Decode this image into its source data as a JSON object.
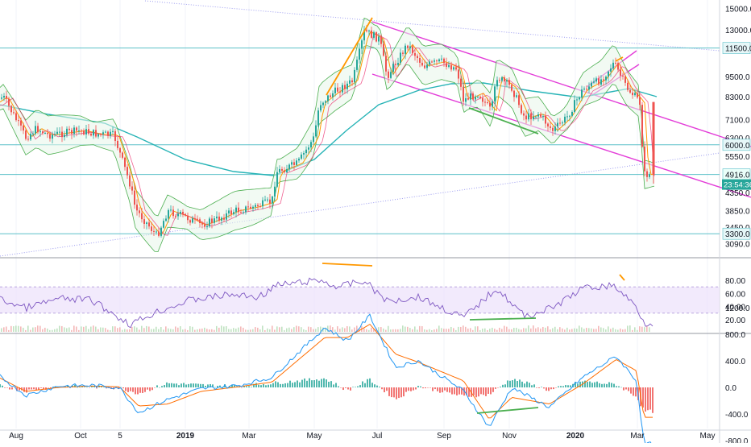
{
  "chart_data": [
    {
      "type": "candlestick",
      "panel": "price",
      "scale": "log",
      "ylim": [
        3000,
        15000
      ],
      "price_ticks": [
        "15000.0",
        "13000.0",
        "9500.0",
        "8300.0",
        "7100.0",
        "6300.0",
        "5550.0",
        "4350.0",
        "3850.0",
        "3450.0",
        "3090.0"
      ],
      "horizontal_levels": [
        {
          "value": 11500,
          "label": "11500.0"
        },
        {
          "value": 6000,
          "label": "6000.0"
        },
        {
          "value": 4916,
          "label": "4916.0"
        },
        {
          "value": 3300,
          "label": "3300.0"
        }
      ],
      "current_price": "4916.0",
      "countdown": "23:54:36",
      "series": [
        {
          "x": "2018-07-15",
          "y": 7900
        },
        {
          "x": "2018-07-25",
          "y": 8300
        },
        {
          "x": "2018-08-05",
          "y": 7200
        },
        {
          "x": "2018-08-15",
          "y": 6300
        },
        {
          "x": "2018-08-25",
          "y": 6700
        },
        {
          "x": "2018-09-05",
          "y": 6400
        },
        {
          "x": "2018-09-20",
          "y": 6500
        },
        {
          "x": "2018-10-05",
          "y": 6600
        },
        {
          "x": "2018-10-20",
          "y": 6450
        },
        {
          "x": "2018-11-05",
          "y": 6400
        },
        {
          "x": "2018-11-20",
          "y": 4600
        },
        {
          "x": "2018-11-25",
          "y": 3900
        },
        {
          "x": "2018-12-15",
          "y": 3250
        },
        {
          "x": "2018-12-25",
          "y": 3850
        },
        {
          "x": "2019-01-10",
          "y": 3700
        },
        {
          "x": "2019-01-25",
          "y": 3500
        },
        {
          "x": "2019-02-10",
          "y": 3650
        },
        {
          "x": "2019-02-25",
          "y": 3850
        },
        {
          "x": "2019-03-15",
          "y": 3950
        },
        {
          "x": "2019-04-01",
          "y": 4100
        },
        {
          "x": "2019-04-05",
          "y": 5000
        },
        {
          "x": "2019-04-25",
          "y": 5300
        },
        {
          "x": "2019-05-10",
          "y": 6300
        },
        {
          "x": "2019-05-15",
          "y": 7900
        },
        {
          "x": "2019-05-30",
          "y": 8600
        },
        {
          "x": "2019-06-15",
          "y": 9200
        },
        {
          "x": "2019-06-26",
          "y": 12900
        },
        {
          "x": "2019-07-10",
          "y": 12200
        },
        {
          "x": "2019-07-17",
          "y": 9500
        },
        {
          "x": "2019-08-05",
          "y": 11800
        },
        {
          "x": "2019-08-20",
          "y": 10200
        },
        {
          "x": "2019-09-05",
          "y": 10500
        },
        {
          "x": "2019-09-20",
          "y": 10000
        },
        {
          "x": "2019-09-26",
          "y": 8100
        },
        {
          "x": "2019-10-10",
          "y": 8500
        },
        {
          "x": "2019-10-22",
          "y": 7500
        },
        {
          "x": "2019-10-27",
          "y": 9500
        },
        {
          "x": "2019-11-10",
          "y": 8800
        },
        {
          "x": "2019-11-22",
          "y": 7200
        },
        {
          "x": "2019-12-05",
          "y": 7400
        },
        {
          "x": "2019-12-18",
          "y": 6600
        },
        {
          "x": "2019-12-31",
          "y": 7200
        },
        {
          "x": "2020-01-15",
          "y": 8700
        },
        {
          "x": "2020-02-01",
          "y": 9300
        },
        {
          "x": "2020-02-13",
          "y": 10400
        },
        {
          "x": "2020-02-25",
          "y": 8800
        },
        {
          "x": "2020-03-08",
          "y": 8000
        },
        {
          "x": "2020-03-12",
          "y": 4916
        }
      ],
      "x_labels": [
        "Aug",
        "Oct",
        "5",
        "2019",
        "Mar",
        "May",
        "Jul",
        "Sep",
        "Nov",
        "2020",
        "Mar",
        "May"
      ]
    },
    {
      "type": "line",
      "panel": "rsi",
      "ylim": [
        10,
        95
      ],
      "ticks": [
        "80.00",
        "60.00",
        "40.00",
        "20.00"
      ],
      "band": [
        30,
        70
      ],
      "series": [
        {
          "x": "2018-07-15",
          "y": 55
        },
        {
          "x": "2018-08-15",
          "y": 38
        },
        {
          "x": "2018-09-15",
          "y": 52
        },
        {
          "x": "2018-10-15",
          "y": 50
        },
        {
          "x": "2018-11-20",
          "y": 13
        },
        {
          "x": "2018-12-15",
          "y": 32
        },
        {
          "x": "2019-01-15",
          "y": 50
        },
        {
          "x": "2019-02-20",
          "y": 58
        },
        {
          "x": "2019-03-20",
          "y": 55
        },
        {
          "x": "2019-04-05",
          "y": 72
        },
        {
          "x": "2019-05-15",
          "y": 80
        },
        {
          "x": "2019-06-01",
          "y": 70
        },
        {
          "x": "2019-06-26",
          "y": 79
        },
        {
          "x": "2019-07-17",
          "y": 48
        },
        {
          "x": "2019-08-15",
          "y": 55
        },
        {
          "x": "2019-09-26",
          "y": 23
        },
        {
          "x": "2019-10-27",
          "y": 68
        },
        {
          "x": "2019-11-22",
          "y": 25
        },
        {
          "x": "2019-12-18",
          "y": 38
        },
        {
          "x": "2020-01-15",
          "y": 68
        },
        {
          "x": "2020-02-13",
          "y": 72
        },
        {
          "x": "2020-03-05",
          "y": 40
        },
        {
          "x": "2020-03-12",
          "y": 15
        }
      ]
    },
    {
      "type": "bar+line",
      "panel": "macd",
      "ylim": [
        -900,
        1300
      ],
      "ticks": [
        "1200.0",
        "800.0",
        "400.0",
        "0.0",
        "-400.0",
        "-800.0"
      ],
      "macd": [
        {
          "x": "2018-07-15",
          "y": 250
        },
        {
          "x": "2018-08-15",
          "y": -120
        },
        {
          "x": "2018-09-15",
          "y": 20
        },
        {
          "x": "2018-10-15",
          "y": 30
        },
        {
          "x": "2018-11-10",
          "y": 0
        },
        {
          "x": "2018-11-28",
          "y": -380
        },
        {
          "x": "2018-12-25",
          "y": -180
        },
        {
          "x": "2019-01-25",
          "y": -20
        },
        {
          "x": "2019-03-01",
          "y": 30
        },
        {
          "x": "2019-04-01",
          "y": 150
        },
        {
          "x": "2019-05-20",
          "y": 900
        },
        {
          "x": "2019-06-10",
          "y": 700
        },
        {
          "x": "2019-07-01",
          "y": 1080
        },
        {
          "x": "2019-07-25",
          "y": 300
        },
        {
          "x": "2019-08-15",
          "y": 400
        },
        {
          "x": "2019-09-26",
          "y": -50
        },
        {
          "x": "2019-10-20",
          "y": -600
        },
        {
          "x": "2019-11-10",
          "y": 0
        },
        {
          "x": "2019-12-15",
          "y": -300
        },
        {
          "x": "2020-01-15",
          "y": 150
        },
        {
          "x": "2020-02-15",
          "y": 470
        },
        {
          "x": "2020-03-05",
          "y": 100
        },
        {
          "x": "2020-03-12",
          "y": -850
        }
      ],
      "signal": [
        {
          "x": "2018-07-15",
          "y": 200
        },
        {
          "x": "2018-08-15",
          "y": -60
        },
        {
          "x": "2018-09-15",
          "y": 0
        },
        {
          "x": "2018-10-15",
          "y": 20
        },
        {
          "x": "2018-11-10",
          "y": 10
        },
        {
          "x": "2018-11-28",
          "y": -280
        },
        {
          "x": "2018-12-25",
          "y": -250
        },
        {
          "x": "2019-01-25",
          "y": -60
        },
        {
          "x": "2019-03-01",
          "y": 10
        },
        {
          "x": "2019-04-01",
          "y": 80
        },
        {
          "x": "2019-05-20",
          "y": 750
        },
        {
          "x": "2019-06-10",
          "y": 750
        },
        {
          "x": "2019-07-01",
          "y": 950
        },
        {
          "x": "2019-07-25",
          "y": 500
        },
        {
          "x": "2019-08-15",
          "y": 380
        },
        {
          "x": "2019-09-26",
          "y": 100
        },
        {
          "x": "2019-10-20",
          "y": -480
        },
        {
          "x": "2019-11-10",
          "y": -150
        },
        {
          "x": "2019-12-15",
          "y": -250
        },
        {
          "x": "2020-01-15",
          "y": 50
        },
        {
          "x": "2020-02-15",
          "y": 420
        },
        {
          "x": "2020-03-05",
          "y": 250
        },
        {
          "x": "2020-03-12",
          "y": -450
        }
      ]
    }
  ],
  "colors": {
    "up": "#26a69a",
    "down": "#ef5350",
    "level_line": "#5bc0c8",
    "channel": "#e33dd8",
    "orange_annotation": "#ff9800",
    "green_annotation": "#4caf50",
    "rsi_line": "#7e57c2",
    "rsi_band": "#ede1fb",
    "macd_line": "#2196f3",
    "signal_line": "#ff6d00",
    "ma_teal": "#26b3b6",
    "bollinger": "#4caf50"
  }
}
